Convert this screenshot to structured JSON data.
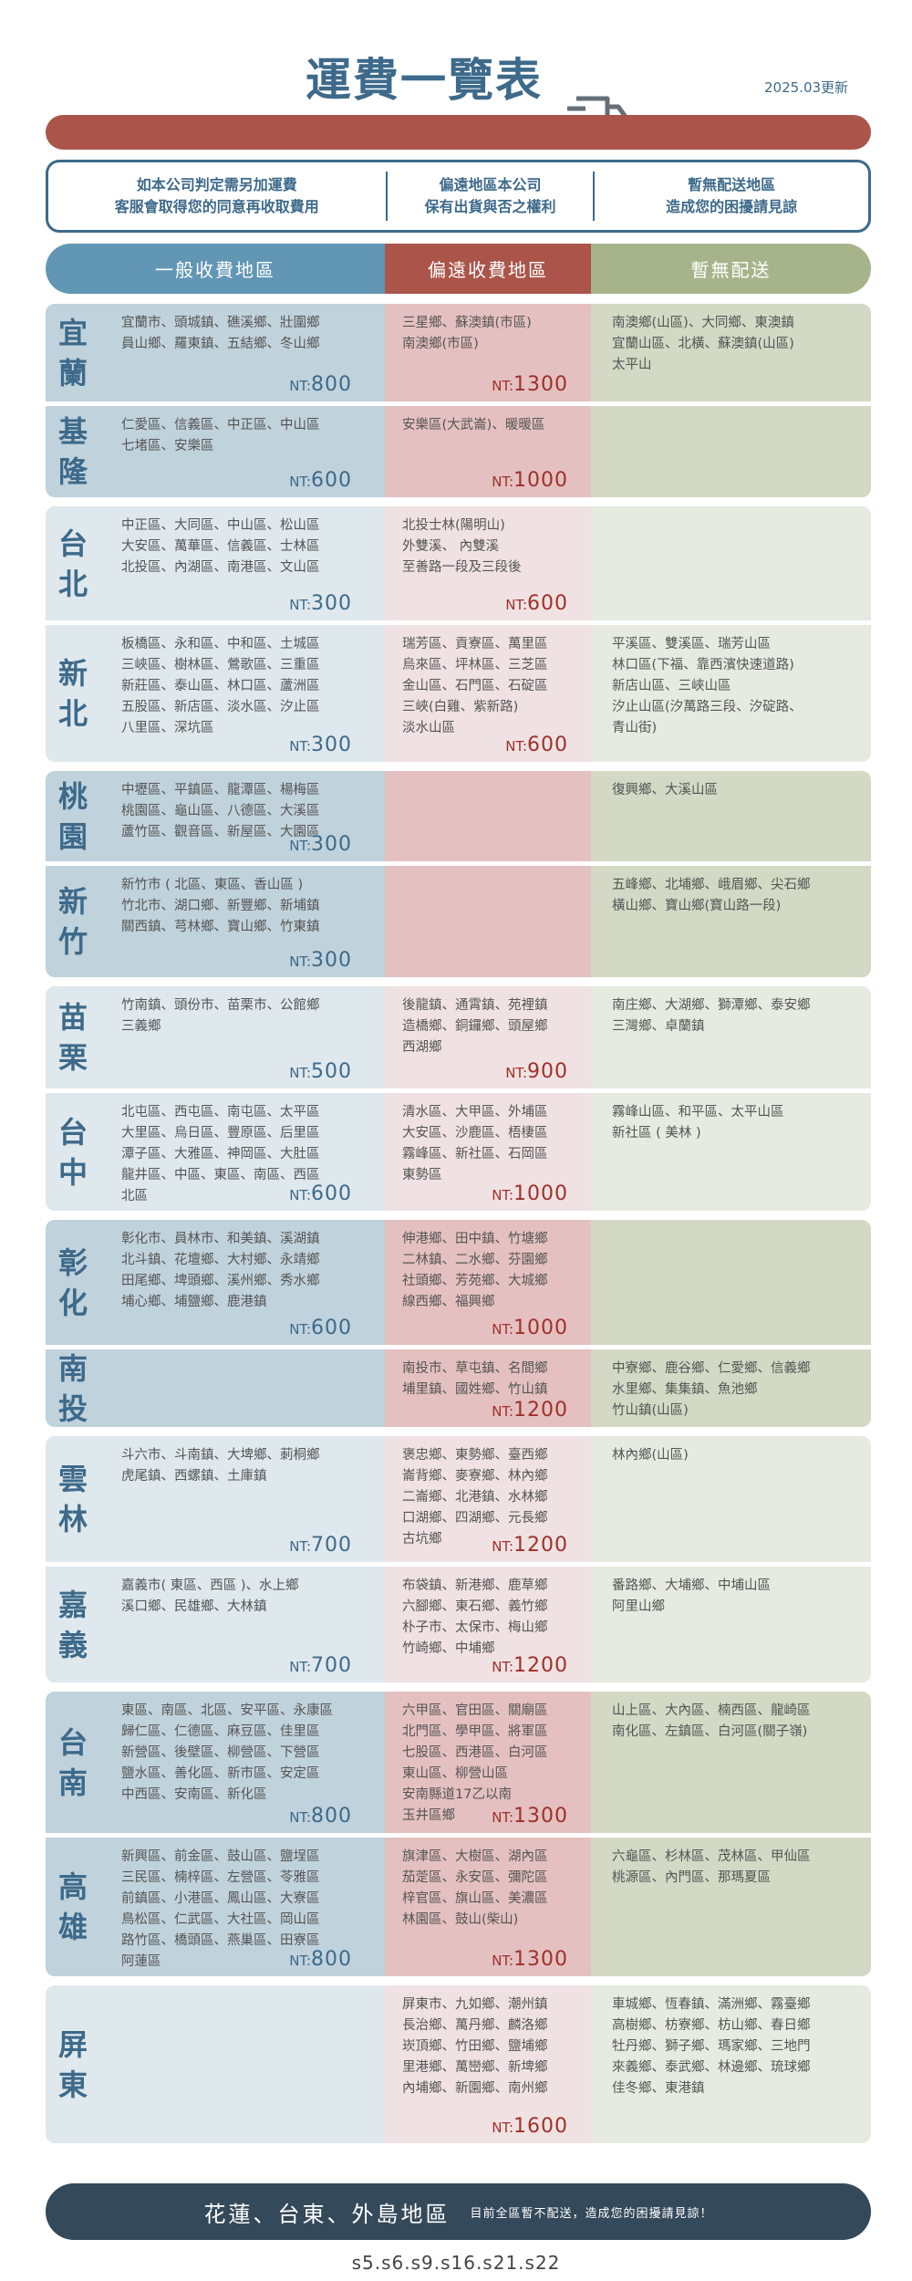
{
  "header": {
    "title": "運費一覽表",
    "icon": "truck-icon",
    "updated": "2025.03更新"
  },
  "info": [
    [
      "如本公司判定需另加運費",
      "客服會取得您的同意再收取費用"
    ],
    [
      "偏遠地區本公司",
      "保有出貨與否之權利"
    ],
    [
      "暫無配送地區",
      "造成您的困擾請見諒"
    ]
  ],
  "columns": {
    "general": "一般收費地區",
    "remote": "偏遠收費地區",
    "none": "暫無配送"
  },
  "colors": {
    "blue": "#6296b5",
    "red": "#ab554a",
    "green": "#a7b48b",
    "navy": "#34495a",
    "text_blue": "#3d6a8a",
    "price_red": "#a0302a"
  },
  "currency": "NT:",
  "rows": [
    {
      "name": "宜蘭",
      "general": [
        "宜蘭市、頭城鎮、礁溪鄉、壯圍鄉",
        "員山鄉、羅東鎮、五結鄉、冬山鄉"
      ],
      "general_price": "800",
      "remote": [
        "三星鄉、蘇澳鎮(市區)",
        "南澳鄉(市區)"
      ],
      "remote_price": "1300",
      "none": [
        "南澳鄉(山區)、大同鄉、東澳鎮",
        "宜蘭山區、北橫、蘇澳鎮(山區)",
        "太平山"
      ]
    },
    {
      "name": "基隆",
      "general": [
        "仁愛區、信義區、中正區、中山區",
        "七堵區、安樂區"
      ],
      "general_price": "600",
      "remote": [
        "安樂區(大武崙)、暖暖區"
      ],
      "remote_price": "1000",
      "none": []
    },
    {
      "name": "台北",
      "general": [
        "中正區、大同區、中山區、松山區",
        "大安區、萬華區、信義區、士林區",
        "北投區、內湖區、南港區、文山區"
      ],
      "general_price": "300",
      "remote": [
        "北投士林(陽明山)",
        "外雙溪、 內雙溪",
        "至善路一段及三段後"
      ],
      "remote_price": "600",
      "none": []
    },
    {
      "name": "新北",
      "general": [
        "板橋區、永和區、中和區、土城區",
        "三峽區、樹林區、鶯歌區、三重區",
        "新莊區、泰山區、林口區、蘆洲區",
        "五股區、新店區、淡水區、汐止區",
        "八里區、深坑區"
      ],
      "general_price": "300",
      "remote": [
        "瑞芳區、貢寮區、萬里區",
        "烏來區、坪林區、三芝區",
        "金山區、石門區、石碇區",
        "三峽(白雞、紫新路)",
        "淡水山區"
      ],
      "remote_price": "600",
      "none": [
        "平溪區、雙溪區、瑞芳山區",
        "林口區(下福、靠西濱快速道路)",
        "新店山區、三峽山區",
        "汐止山區(汐萬路三段、汐碇路、",
        "青山街)"
      ]
    },
    {
      "name": "桃園",
      "general": [
        "中壢區、平鎮區、龍潭區、楊梅區",
        "桃園區、龜山區、八德區、大溪區",
        "蘆竹區、觀音區、新屋區、大園區"
      ],
      "general_price": "300",
      "remote": [],
      "remote_price": "",
      "none": [
        "復興鄉、大溪山區"
      ]
    },
    {
      "name": "新竹",
      "general": [
        "新竹市 ( 北區、東區、香山區 )",
        "竹北市、湖口鄉、新豐鄉、新埔鎮",
        "關西鎮、芎林鄉、寶山鄉、竹東鎮"
      ],
      "general_price": "300",
      "remote": [],
      "remote_price": "",
      "none": [
        "五峰鄉、北埔鄉、峨眉鄉、尖石鄉",
        "橫山鄉、寶山鄉(寶山路一段)"
      ]
    },
    {
      "name": "苗栗",
      "general": [
        "竹南鎮、頭份市、苗栗市、公館鄉",
        "三義鄉"
      ],
      "general_price": "500",
      "remote": [
        "後龍鎮、通霄鎮、苑裡鎮",
        "造橋鄉、銅鑼鄉、頭屋鄉",
        "西湖鄉"
      ],
      "remote_price": "900",
      "none": [
        "南庄鄉、大湖鄉、獅潭鄉、泰安鄉",
        "三灣鄉、卓蘭鎮"
      ]
    },
    {
      "name": "台中",
      "general": [
        "北屯區、西屯區、南屯區、太平區",
        "大里區、烏日區、豐原區、后里區",
        "潭子區、大雅區、神岡區、大肚區",
        "龍井區、中區、東區、南區、西區",
        "北區"
      ],
      "general_price": "600",
      "remote": [
        "清水區、大甲區、外埔區",
        "大安區、沙鹿區、梧棲區",
        "霧峰區、新社區、石岡區",
        "東勢區"
      ],
      "remote_price": "1000",
      "none": [
        "霧峰山區、和平區、太平山區",
        "新社區 ( 美林 )"
      ]
    },
    {
      "name": "彰化",
      "general": [
        "彰化市、員林市、和美鎮、溪湖鎮",
        "北斗鎮、花壇鄉、大村鄉、永靖鄉",
        "田尾鄉、埤頭鄉、溪州鄉、秀水鄉",
        "埔心鄉、埔鹽鄉、鹿港鎮"
      ],
      "general_price": "600",
      "remote": [
        "伸港鄉、田中鎮、竹塘鄉",
        "二林鎮、二水鄉、芬園鄉",
        "社頭鄉、芳苑鄉、大城鄉",
        "線西鄉、福興鄉"
      ],
      "remote_price": "1000",
      "none": []
    },
    {
      "name": "南投",
      "general": [],
      "general_price": "",
      "remote": [
        "南投市、草屯鎮、名間鄉",
        "埔里鎮、國姓鄉、竹山鎮"
      ],
      "remote_price": "1200",
      "none": [
        "中寮鄉、鹿谷鄉、仁愛鄉、信義鄉",
        "水里鄉、集集鎮、魚池鄉",
        "竹山鎮(山區)"
      ]
    },
    {
      "name": "雲林",
      "general": [
        "斗六市、斗南鎮、大埤鄉、莿桐鄉",
        "虎尾鎮、西螺鎮、土庫鎮"
      ],
      "general_price": "700",
      "remote": [
        "褒忠鄉、東勢鄉、臺西鄉",
        "崙背鄉、麥寮鄉、林內鄉",
        "二崙鄉、北港鎮、水林鄉",
        "口湖鄉、四湖鄉、元長鄉",
        "古坑鄉"
      ],
      "remote_price": "1200",
      "none": [
        "林內鄉(山區)"
      ]
    },
    {
      "name": "嘉義",
      "general": [
        "嘉義市( 東區、西區 )、水上鄉",
        "溪口鄉、民雄鄉、大林鎮"
      ],
      "general_price": "700",
      "remote": [
        "布袋鎮、新港鄉、鹿草鄉",
        "六腳鄉、東石鄉、義竹鄉",
        "朴子市、太保市、梅山鄉",
        "竹崎鄉、中埔鄉"
      ],
      "remote_price": "1200",
      "none": [
        "番路鄉、大埔鄉、中埔山區",
        "阿里山鄉"
      ]
    },
    {
      "name": "台南",
      "general": [
        "東區、南區、北區、安平區、永康區",
        "歸仁區、仁德區、麻豆區、佳里區",
        "新營區、後壁區、柳營區、下營區",
        "鹽水區、善化區、新市區、安定區",
        "中西區、安南區、新化區"
      ],
      "general_price": "800",
      "remote": [
        "六甲區、官田區、關廟區",
        "北門區、學甲區、將軍區",
        "七股區、西港區、白河區",
        "東山區、柳營山區",
        "安南縣道17乙以南",
        "玉井區鄉"
      ],
      "remote_price": "1300",
      "none": [
        "山上區、大內區、楠西區、龍崎區",
        "南化區、左鎮區、白河區(關子嶺)"
      ]
    },
    {
      "name": "高雄",
      "general": [
        "新興區、前金區、鼓山區、鹽埕區",
        "三民區、楠梓區、左營區、苓雅區",
        "前鎮區、小港區、鳳山區、大寮區",
        "鳥松區、仁武區、大社區、岡山區",
        "路竹區、橋頭區、燕巢區、田寮區",
        "阿蓮區"
      ],
      "general_price": "800",
      "remote": [
        "旗津區、大樹區、湖內區",
        "茄萣區、永安區、彌陀區",
        "梓官區、旗山區、美濃區",
        "林園區、鼓山(柴山)"
      ],
      "remote_price": "1300",
      "none": [
        "六龜區、杉林區、茂林區、甲仙區",
        "桃源區、內門區、那瑪夏區"
      ]
    },
    {
      "name": "屏東",
      "general": [],
      "general_price": "",
      "remote": [
        "屏東市、九如鄉、潮州鎮",
        "長治鄉、萬丹鄉、麟洛鄉",
        "崁頂鄉、竹田鄉、鹽埔鄉",
        "里港鄉、萬巒鄉、新埤鄉",
        "內埔鄉、新園鄉、南州鄉"
      ],
      "remote_price": "1600",
      "none": [
        "車城鄉、恆春鎮、滿洲鄉、霧臺鄉",
        "高樹鄉、枋寮鄉、枋山鄉、春日鄉",
        "牡丹鄉、獅子鄉、瑪家鄉、三地門",
        "來義鄉、泰武鄉、林邊鄉、琉球鄉",
        "佳冬鄉、東港鎮"
      ]
    }
  ],
  "bottom": {
    "areas": "花蓮、台東、外島地區",
    "note": "目前全區暫不配送，造成您的困擾請見諒！"
  },
  "footer": "s5.s6.s9.s16.s21.s22"
}
